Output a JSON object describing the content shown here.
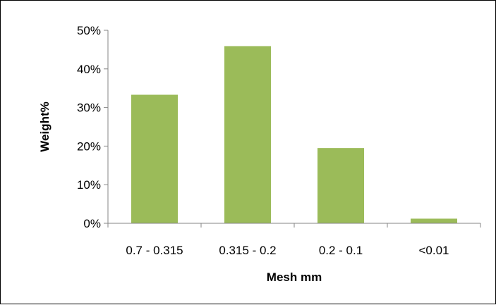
{
  "chart_data": {
    "type": "bar",
    "title": "",
    "xlabel": "Mesh mm",
    "ylabel": "Weight%",
    "categories": [
      "0.7 - 0.315",
      "0.315 - 0.2",
      "0.2 - 0.1",
      "<0.01"
    ],
    "values": [
      33.3,
      45.9,
      19.5,
      1.2
    ],
    "value_unit": "%",
    "ylim": [
      0,
      50
    ],
    "yticks": [
      0,
      10,
      20,
      30,
      40,
      50
    ],
    "ytick_labels": [
      "0%",
      "10%",
      "20%",
      "30%",
      "40%",
      "50%"
    ],
    "grid": false,
    "legend": "none",
    "bar_color": "#9bbb59",
    "axis_color": "#868686"
  }
}
